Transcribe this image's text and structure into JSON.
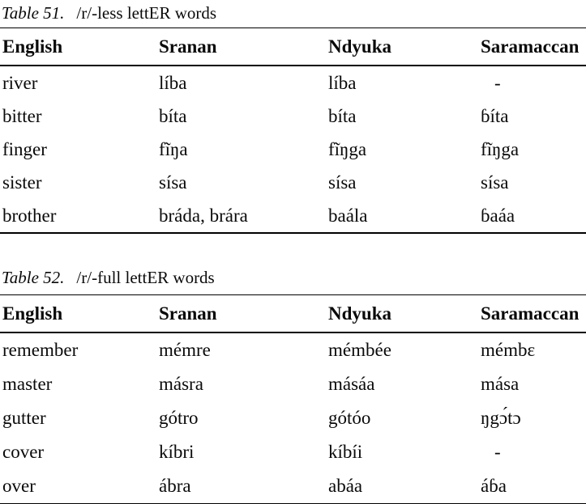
{
  "page": {
    "background_color": "#ffffff",
    "text_color": "#0a0a0a",
    "rule_color": "#000000"
  },
  "tables": [
    {
      "caption_label": "Table 51.",
      "caption_text": "/r/-less lettER words",
      "headers": [
        "English",
        "Sranan",
        "Ndyuka",
        "Saramaccan"
      ],
      "rows": [
        [
          "river",
          "líba",
          "líba",
          "-"
        ],
        [
          "bitter",
          "bíta",
          "bíta",
          "ɓíta"
        ],
        [
          "finger",
          "fĩŋa",
          "fĩŋga",
          "fĩŋga"
        ],
        [
          "sister",
          "sísa",
          "sísa",
          "sísa"
        ],
        [
          "brother",
          "bráda, brára",
          "baála",
          "ɓaáa"
        ]
      ]
    },
    {
      "caption_label": "Table 52.",
      "caption_text": "/r/-full lettER words",
      "headers": [
        "English",
        "Sranan",
        "Ndyuka",
        "Saramaccan"
      ],
      "rows": [
        [
          "remember",
          "mémre",
          "mémbée",
          "mémbɛ"
        ],
        [
          "master",
          "másra",
          "másáa",
          "mása"
        ],
        [
          "gutter",
          "gótro",
          "gótóo",
          "ŋgɔ́tɔ"
        ],
        [
          "cover",
          "kíbri",
          "kíbíi",
          "-"
        ],
        [
          "over",
          "ábra",
          "abáa",
          "áɓa"
        ]
      ]
    }
  ]
}
